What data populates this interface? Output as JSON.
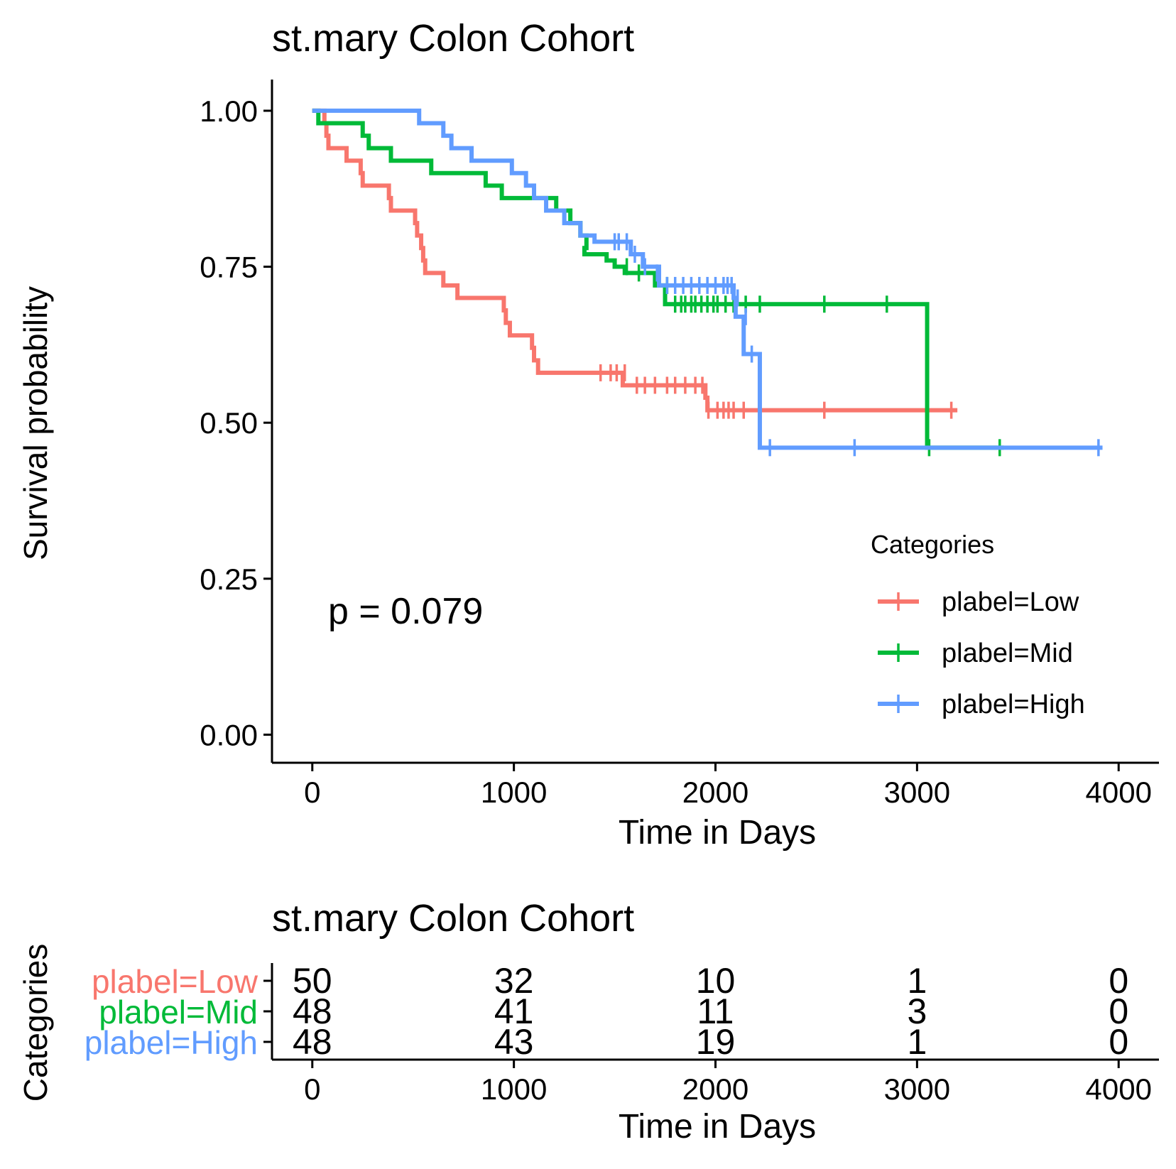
{
  "chart_data": [
    {
      "type": "line",
      "subtype": "kaplan-meier",
      "title": "st.mary Colon Cohort",
      "xlabel": "Time in Days",
      "ylabel": "Survival probability",
      "xlim": [
        -200,
        4200
      ],
      "ylim": [
        -0.045,
        1.05
      ],
      "xticks": [
        0,
        1000,
        2000,
        3000,
        4000
      ],
      "yticks": [
        0,
        0.25,
        0.5,
        0.75,
        1
      ],
      "ytick_labels": [
        "0.00",
        "0.25",
        "0.50",
        "0.75",
        "1.00"
      ],
      "grid": false,
      "annotation": "p = 0.079",
      "legend": {
        "title": "Categories",
        "position": "right",
        "entries": [
          "plabel=Low",
          "plabel=Mid",
          "plabel=High"
        ]
      },
      "series": [
        {
          "name": "plabel=Low",
          "color": "#F8766D",
          "steps": [
            [
              0,
              1.0
            ],
            [
              60,
              0.98
            ],
            [
              70,
              0.96
            ],
            [
              80,
              0.94
            ],
            [
              170,
              0.92
            ],
            [
              240,
              0.9
            ],
            [
              250,
              0.88
            ],
            [
              380,
              0.86
            ],
            [
              390,
              0.84
            ],
            [
              510,
              0.82
            ],
            [
              520,
              0.8
            ],
            [
              540,
              0.78
            ],
            [
              550,
              0.76
            ],
            [
              560,
              0.74
            ],
            [
              650,
              0.72
            ],
            [
              720,
              0.7
            ],
            [
              950,
              0.68
            ],
            [
              960,
              0.66
            ],
            [
              980,
              0.64
            ],
            [
              1090,
              0.62
            ],
            [
              1100,
              0.6
            ],
            [
              1120,
              0.58
            ],
            [
              1540,
              0.56
            ],
            [
              1950,
              0.54
            ],
            [
              1960,
              0.52
            ],
            [
              3200,
              0.52
            ]
          ],
          "censor_x": [
            1430,
            1480,
            1510,
            1550,
            1610,
            1650,
            1700,
            1760,
            1800,
            1850,
            1900,
            1935,
            1965,
            2010,
            2040,
            2065,
            2090,
            2140,
            2540,
            3170
          ],
          "censor_y": [
            0.58,
            0.58,
            0.58,
            0.58,
            0.56,
            0.56,
            0.56,
            0.56,
            0.56,
            0.56,
            0.56,
            0.56,
            0.52,
            0.52,
            0.52,
            0.52,
            0.52,
            0.52,
            0.52,
            0.52
          ]
        },
        {
          "name": "plabel=Mid",
          "color": "#00BA38",
          "steps": [
            [
              0,
              1.0
            ],
            [
              30,
              0.98
            ],
            [
              250,
              0.96
            ],
            [
              280,
              0.94
            ],
            [
              390,
              0.92
            ],
            [
              590,
              0.9
            ],
            [
              860,
              0.88
            ],
            [
              940,
              0.86
            ],
            [
              1210,
              0.84
            ],
            [
              1280,
              0.82
            ],
            [
              1330,
              0.8
            ],
            [
              1360,
              0.78
            ],
            [
              1350,
              0.77
            ],
            [
              1460,
              0.76
            ],
            [
              1500,
              0.75
            ],
            [
              1550,
              0.74
            ],
            [
              1700,
              0.72
            ],
            [
              1750,
              0.69
            ],
            [
              3040,
              0.69
            ],
            [
              3050,
              0.46
            ],
            [
              3430,
              0.46
            ]
          ],
          "censor_x": [
            1560,
            1620,
            1760,
            1800,
            1830,
            1850,
            1880,
            1900,
            1930,
            1960,
            1990,
            2010,
            2050,
            2090,
            2150,
            2220,
            2540,
            2850,
            3060,
            3410
          ],
          "censor_y": [
            0.75,
            0.74,
            0.72,
            0.69,
            0.69,
            0.69,
            0.69,
            0.69,
            0.69,
            0.69,
            0.69,
            0.69,
            0.69,
            0.69,
            0.69,
            0.69,
            0.69,
            0.69,
            0.46,
            0.46
          ]
        },
        {
          "name": "plabel=High",
          "color": "#619CFF",
          "steps": [
            [
              0,
              1.0
            ],
            [
              530,
              0.98
            ],
            [
              650,
              0.96
            ],
            [
              690,
              0.94
            ],
            [
              790,
              0.92
            ],
            [
              990,
              0.9
            ],
            [
              1060,
              0.88
            ],
            [
              1100,
              0.86
            ],
            [
              1160,
              0.84
            ],
            [
              1250,
              0.82
            ],
            [
              1330,
              0.8
            ],
            [
              1400,
              0.79
            ],
            [
              1580,
              0.77
            ],
            [
              1640,
              0.75
            ],
            [
              1720,
              0.72
            ],
            [
              2090,
              0.7
            ],
            [
              2100,
              0.67
            ],
            [
              2140,
              0.61
            ],
            [
              2220,
              0.46
            ],
            [
              3920,
              0.46
            ]
          ],
          "censor_x": [
            1500,
            1520,
            1560,
            1600,
            1650,
            1710,
            1760,
            1800,
            1840,
            1880,
            1920,
            1960,
            2000,
            2040,
            2060,
            2080,
            2110,
            2150,
            2180,
            2270,
            2690,
            3900
          ],
          "censor_y": [
            0.79,
            0.79,
            0.79,
            0.77,
            0.75,
            0.74,
            0.72,
            0.72,
            0.72,
            0.72,
            0.72,
            0.72,
            0.72,
            0.72,
            0.72,
            0.72,
            0.7,
            0.67,
            0.61,
            0.46,
            0.46,
            0.46
          ]
        }
      ]
    },
    {
      "type": "table",
      "title": "st.mary Colon Cohort",
      "xlabel": "Time in Days",
      "ylabel": "Categories",
      "xlim": [
        -200,
        4200
      ],
      "xticks": [
        0,
        1000,
        2000,
        3000,
        4000
      ],
      "rows": [
        {
          "label": "plabel=Low",
          "color": "#F8766D",
          "values": [
            50,
            32,
            10,
            1,
            0
          ]
        },
        {
          "label": "plabel=Mid",
          "color": "#00BA38",
          "values": [
            48,
            41,
            11,
            3,
            0
          ]
        },
        {
          "label": "plabel=High",
          "color": "#619CFF",
          "values": [
            48,
            43,
            19,
            1,
            0
          ]
        }
      ]
    }
  ]
}
